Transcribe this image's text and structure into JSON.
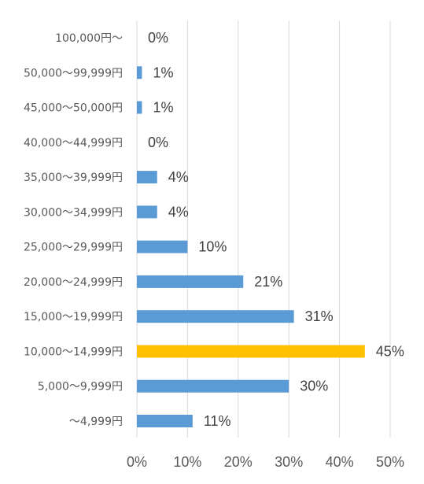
{
  "chart_data": {
    "type": "bar",
    "orientation": "horizontal",
    "categories": [
      "100,000円～",
      "50,000～99,999円",
      "45,000～50,000円",
      "40,000～44,999円",
      "35,000～39,999円",
      "30,000～34,999円",
      "25,000～29,999円",
      "20,000～24,999円",
      "15,000～19,999円",
      "10,000～14,999円",
      "5,000～9,999円",
      "～4,999円"
    ],
    "values": [
      0,
      1,
      1,
      0,
      4,
      4,
      10,
      21,
      31,
      45,
      30,
      11
    ],
    "value_labels": [
      "0%",
      "1%",
      "1%",
      "0%",
      "4%",
      "4%",
      "10%",
      "21%",
      "31%",
      "45%",
      "30%",
      "11%"
    ],
    "highlight_index": 9,
    "xlim": [
      0,
      50
    ],
    "x_ticks": [
      "0%",
      "10%",
      "20%",
      "30%",
      "40%",
      "50%"
    ],
    "grid": true,
    "colors": {
      "bar": "#5b9bd5",
      "highlight": "#ffc000",
      "grid": "#d9d9d9"
    }
  }
}
